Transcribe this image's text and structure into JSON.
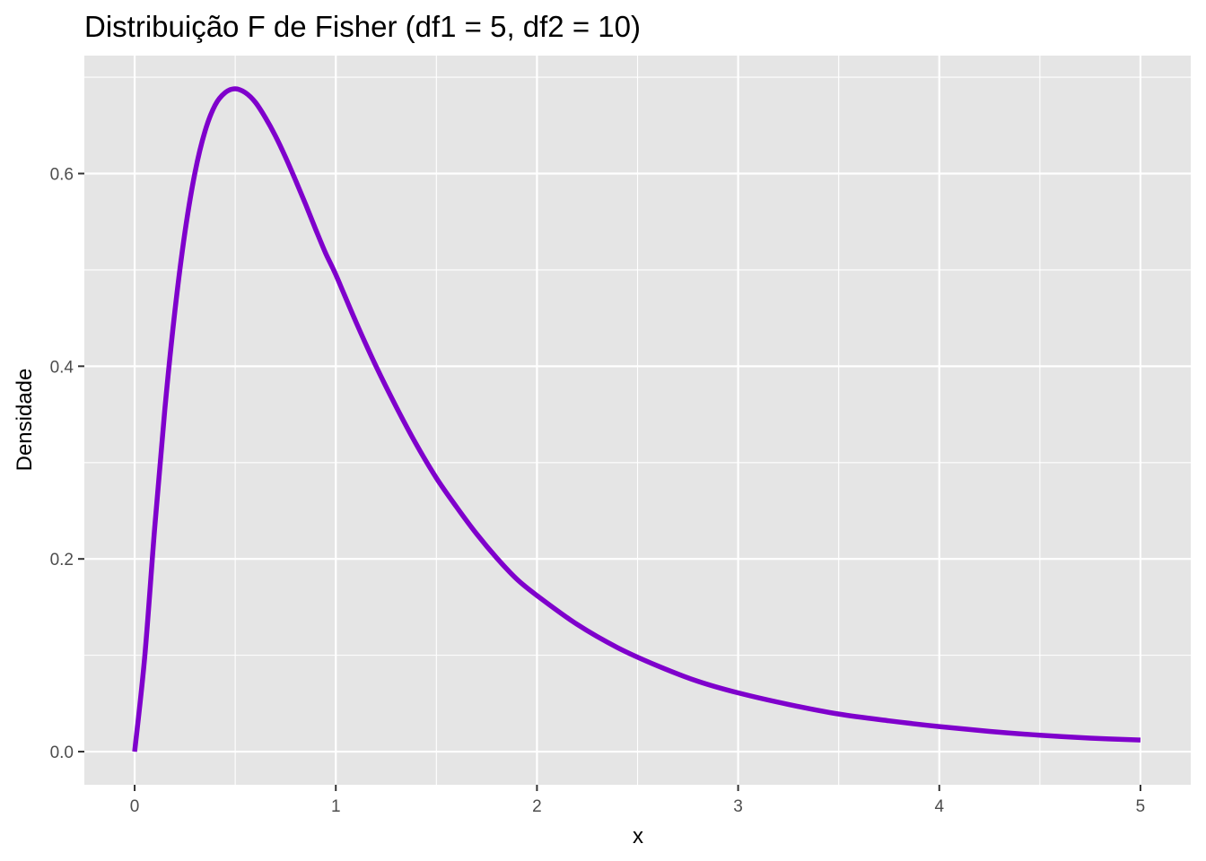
{
  "chart_data": {
    "type": "line",
    "title": "Distribuição F de Fisher (df1 = 5, df2 = 10)",
    "xlabel": "x",
    "ylabel": "Densidade",
    "xlim": [
      -0.25,
      5.25
    ],
    "ylim": [
      -0.0344,
      0.7224
    ],
    "x_ticks": [
      0,
      1,
      2,
      3,
      4,
      5
    ],
    "x_tick_labels": [
      "0",
      "1",
      "2",
      "3",
      "4",
      "5"
    ],
    "y_ticks": [
      0.0,
      0.2,
      0.4,
      0.6
    ],
    "y_tick_labels": [
      "0.0",
      "0.2",
      "0.4",
      "0.6"
    ],
    "grid": true,
    "legend": "none",
    "panel_background": "#e5e5e5",
    "grid_color": "#ffffff",
    "series": [
      {
        "color": "#7f00cc",
        "x": [
          0,
          0.05,
          0.1,
          0.15,
          0.2,
          0.25,
          0.3,
          0.35,
          0.4,
          0.45,
          0.5,
          0.55,
          0.6,
          0.65,
          0.7,
          0.75,
          0.8,
          0.85,
          0.9,
          0.95,
          1.0,
          1.1,
          1.2,
          1.3,
          1.4,
          1.5,
          1.6,
          1.7,
          1.8,
          1.9,
          2.0,
          2.2,
          2.4,
          2.6,
          2.8,
          3.0,
          3.25,
          3.5,
          3.75,
          4.0,
          4.25,
          4.5,
          4.75,
          5.0
        ],
        "y": [
          0,
          0.098,
          0.233,
          0.355,
          0.457,
          0.539,
          0.601,
          0.644,
          0.671,
          0.684,
          0.688,
          0.684,
          0.674,
          0.658,
          0.639,
          0.617,
          0.593,
          0.568,
          0.542,
          0.517,
          0.495,
          0.446,
          0.4,
          0.358,
          0.319,
          0.284,
          0.254,
          0.226,
          0.201,
          0.179,
          0.162,
          0.132,
          0.108,
          0.089,
          0.073,
          0.061,
          0.049,
          0.039,
          0.032,
          0.026,
          0.021,
          0.017,
          0.014,
          0.012
        ]
      }
    ]
  }
}
